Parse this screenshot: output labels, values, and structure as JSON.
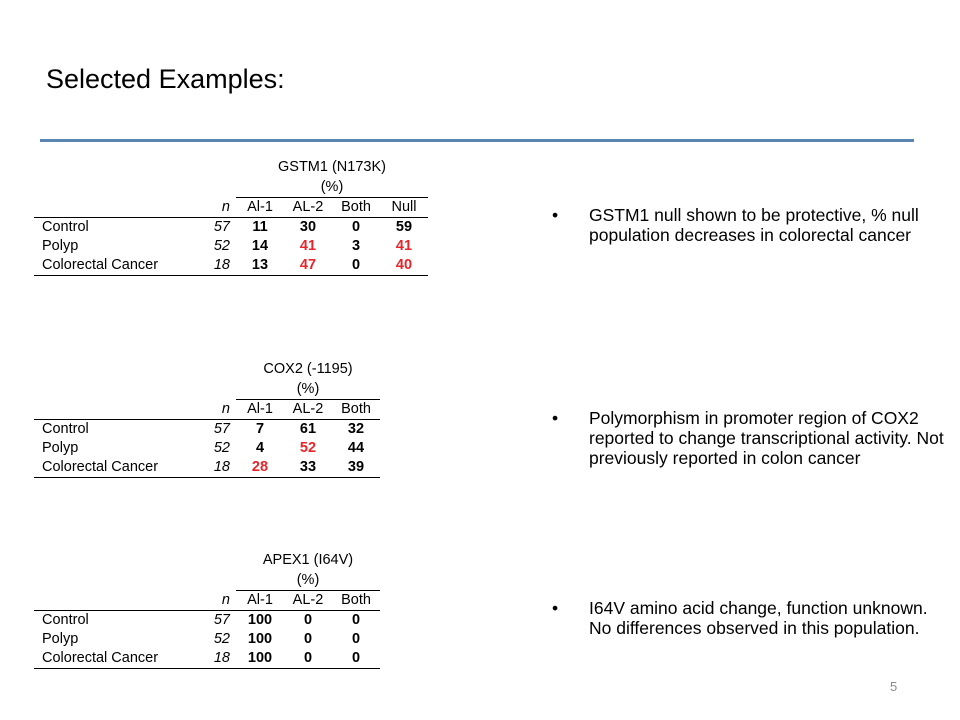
{
  "title": "Selected Examples:",
  "tables": [
    {
      "header_line1": "GSTM1 (N173K)",
      "header_line2": "(%)",
      "n_label": "n",
      "columns": [
        "Al-1",
        "AL-2",
        "Both",
        "Null"
      ],
      "rows": [
        {
          "label": "Control",
          "n": "57",
          "values": [
            "11",
            "30",
            "0",
            "59"
          ]
        },
        {
          "label": "Polyp",
          "n": "52",
          "values": [
            "14",
            "41",
            "3",
            "41"
          ]
        },
        {
          "label": "Colorectal Cancer",
          "n": "18",
          "values": [
            "13",
            "47",
            "0",
            "40"
          ]
        }
      ],
      "highlight_color": "#e8242a"
    },
    {
      "header_line1": "COX2 (-1195)",
      "header_line2": "(%)",
      "n_label": "n",
      "columns": [
        "Al-1",
        "AL-2",
        "Both"
      ],
      "rows": [
        {
          "label": "Control",
          "n": "57",
          "values": [
            "7",
            "61",
            "32"
          ]
        },
        {
          "label": "Polyp",
          "n": "52",
          "values": [
            "4",
            "52",
            "44"
          ]
        },
        {
          "label": "Colorectal Cancer",
          "n": "18",
          "values": [
            "28",
            "33",
            "39"
          ]
        }
      ]
    },
    {
      "header_line1": "APEX1 (I64V)",
      "header_line2": "(%)",
      "n_label": "n",
      "columns": [
        "Al-1",
        "AL-2",
        "Both"
      ],
      "rows": [
        {
          "label": "Control",
          "n": "57",
          "values": [
            "100",
            "0",
            "0"
          ]
        },
        {
          "label": "Polyp",
          "n": "52",
          "values": [
            "100",
            "0",
            "0"
          ]
        },
        {
          "label": "Colorectal Cancer",
          "n": "18",
          "values": [
            "100",
            "0",
            "0"
          ]
        }
      ]
    }
  ],
  "bullets": [
    "GSTM1 null shown to be protective, % null population decreases in colorectal cancer",
    "Polymorphism in promoter region of COX2 reported to change transcriptional activity.  Not previously reported in colon cancer",
    "I64V  amino acid change, function unknown.  No differences observed in this population."
  ],
  "bullet_symbol": "•",
  "page_number": "5",
  "accent_color": "#5b84b1"
}
